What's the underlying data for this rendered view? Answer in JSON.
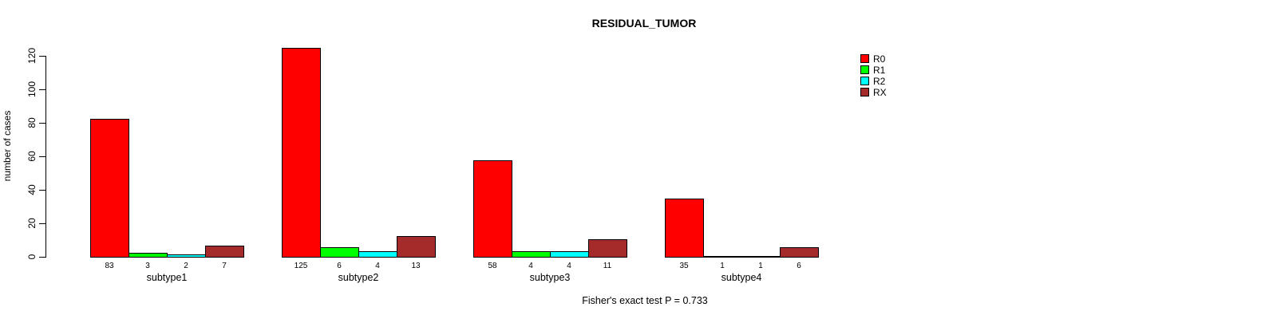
{
  "chart_data": {
    "type": "bar",
    "title": "RESIDUAL_TUMOR",
    "xlabel": "",
    "ylabel": "number of cases",
    "categories": [
      "subtype1",
      "subtype2",
      "subtype3",
      "subtype4"
    ],
    "series": [
      {
        "name": "R0",
        "color": "#FF0000",
        "values": [
          83,
          125,
          58,
          35
        ]
      },
      {
        "name": "R1",
        "color": "#00FF00",
        "values": [
          3,
          6,
          4,
          1
        ]
      },
      {
        "name": "R2",
        "color": "#00FFFF",
        "values": [
          2,
          4,
          4,
          1
        ]
      },
      {
        "name": "RX",
        "color": "#A52A2A",
        "values": [
          7,
          13,
          11,
          6
        ]
      }
    ],
    "yticks": [
      0,
      20,
      40,
      60,
      80,
      100,
      120
    ],
    "ylim": [
      0,
      130
    ],
    "grid": false,
    "legend_position": "right",
    "bar_value_labels_shown": true,
    "annotation": "Fisher's exact test P = 0.733"
  }
}
